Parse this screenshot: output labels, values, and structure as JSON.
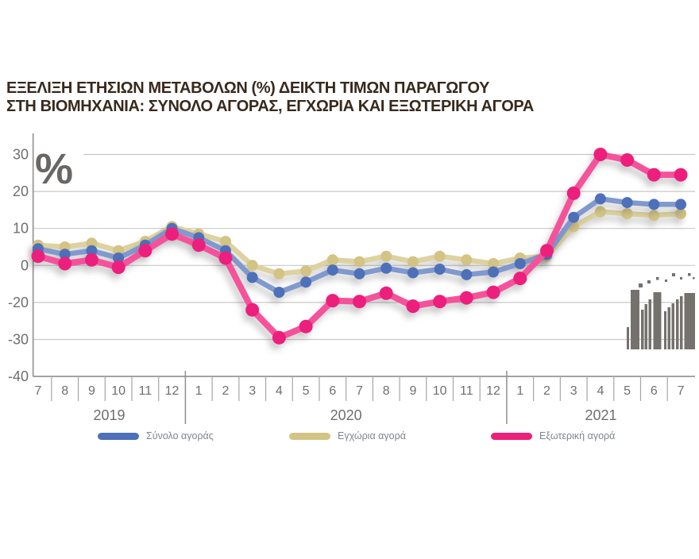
{
  "title": {
    "line1": "ΕΞΕΛΙΞΗ ΕΤΗΣΙΩΝ ΜΕΤΑΒΟΛΩΝ (%) ΔΕΙΚΤΗ ΤΙΜΩΝ ΠΑΡΑΓΩΓΟΥ",
    "line2": "ΣΤΗ ΒΙΟΜΗΧΑΝΙΑ: ΣΥΝΟΛΟ ΑΓΟΡΑΣ, ΕΓΧΩΡΙΑ ΚΑΙ ΕΞΩΤΕΡΙΚΗ ΑΓΟΡΑ"
  },
  "percent_symbol": "%",
  "colors": {
    "title_text": "#38291c",
    "axis_grey": "#8f8f8f",
    "grid_grey": "#c9c9c9",
    "label_grey": "#6f6f6f",
    "logo_grey": "#75716c"
  },
  "chart_data": {
    "type": "line",
    "x_categories": [
      "7",
      "8",
      "9",
      "10",
      "11",
      "12",
      "1",
      "2",
      "3",
      "4",
      "5",
      "6",
      "7",
      "8",
      "9",
      "10",
      "11",
      "12",
      "1",
      "2",
      "3",
      "4",
      "5",
      "6",
      "7"
    ],
    "year_groups": [
      {
        "label": "2019",
        "months": 6
      },
      {
        "label": "2020",
        "months": 12
      },
      {
        "label": "2021",
        "months": 7
      }
    ],
    "y_axis": {
      "tick_labels": [
        "30",
        "20",
        "10",
        "0",
        "-20",
        "-30",
        "-40"
      ],
      "tick_values": [
        30,
        20,
        10,
        0,
        -20,
        -30,
        -40
      ],
      "unit": "%",
      "grid": true,
      "note": "ticks equally spaced as printed; -10 not shown"
    },
    "series": [
      {
        "name": "Σύνολο αγοράς",
        "line_color": "#8099ce",
        "dot_color": "#4d70b8",
        "values": [
          4.5,
          3,
          4,
          2,
          5.5,
          10,
          7.5,
          4,
          -6.5,
          -14.5,
          -9,
          -2.5,
          -4.5,
          -1.5,
          -4,
          -2,
          -5,
          -3.5,
          0.5,
          3,
          13,
          18,
          17,
          16.5,
          16.5
        ]
      },
      {
        "name": "Εγχώρια αγορά",
        "line_color": "#ddd2a0",
        "dot_color": "#d3c384",
        "values": [
          5.5,
          5,
          6,
          4,
          6.5,
          10.5,
          8.5,
          6.5,
          0,
          -4.5,
          -3,
          1.5,
          1,
          2.5,
          1,
          2.5,
          1.5,
          0.5,
          2,
          2.5,
          10.5,
          14.5,
          14,
          13.5,
          14
        ]
      },
      {
        "name": "Εξωτερική αγορά",
        "line_color": "#f4539b",
        "dot_color": "#ec1f7d",
        "values": [
          2.5,
          0.5,
          1.5,
          -1,
          4,
          8.5,
          5.5,
          2,
          -22,
          -29.5,
          -26.5,
          -19,
          -19.5,
          -15,
          -21,
          -19.5,
          -17.5,
          -14.5,
          -7,
          4,
          19.5,
          30,
          28.5,
          24.5,
          24.5
        ]
      }
    ],
    "legend_position": "bottom"
  }
}
